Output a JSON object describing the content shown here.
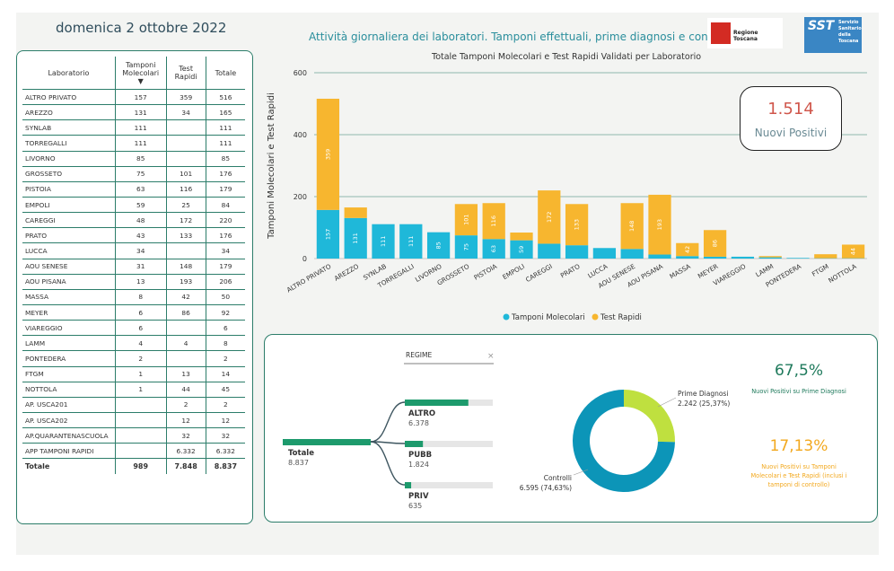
{
  "header": {
    "date": "domenica 2 ottobre 2022",
    "title": "Attività giornaliera dei laboratori. Tamponi effettuali, prime diagnosi e controlli"
  },
  "logos": {
    "regione": "Regione Toscana",
    "sst_big": "SST",
    "sst_small": "Servizio Sanitario della Toscana"
  },
  "table": {
    "headers": [
      "Laboratorio",
      "Tamponi Molecolari",
      "Test Rapidi",
      "Totale"
    ],
    "rows": [
      [
        "ALTRO PRIVATO",
        "157",
        "359",
        "516"
      ],
      [
        "AREZZO",
        "131",
        "34",
        "165"
      ],
      [
        "SYNLAB",
        "111",
        "",
        "111"
      ],
      [
        "TORREGALLI",
        "111",
        "",
        "111"
      ],
      [
        "LIVORNO",
        "85",
        "",
        "85"
      ],
      [
        "GROSSETO",
        "75",
        "101",
        "176"
      ],
      [
        "PISTOIA",
        "63",
        "116",
        "179"
      ],
      [
        "EMPOLI",
        "59",
        "25",
        "84"
      ],
      [
        "CAREGGI",
        "48",
        "172",
        "220"
      ],
      [
        "PRATO",
        "43",
        "133",
        "176"
      ],
      [
        "LUCCA",
        "34",
        "",
        "34"
      ],
      [
        "AOU SENESE",
        "31",
        "148",
        "179"
      ],
      [
        "AOU PISANA",
        "13",
        "193",
        "206"
      ],
      [
        "MASSA",
        "8",
        "42",
        "50"
      ],
      [
        "MEYER",
        "6",
        "86",
        "92"
      ],
      [
        "VIAREGGIO",
        "6",
        "",
        "6"
      ],
      [
        "LAMM",
        "4",
        "4",
        "8"
      ],
      [
        "PONTEDERA",
        "2",
        "",
        "2"
      ],
      [
        "FTGM",
        "1",
        "13",
        "14"
      ],
      [
        "NOTTOLA",
        "1",
        "44",
        "45"
      ],
      [
        "AP. USCA201",
        "",
        "2",
        "2"
      ],
      [
        "AP. USCA202",
        "",
        "12",
        "12"
      ],
      [
        "AP.QUARANTENASCUOLA",
        "",
        "32",
        "32"
      ],
      [
        "APP TAMPONI RAPIDI",
        "",
        "6.332",
        "6.332"
      ]
    ],
    "total": [
      "Totale",
      "989",
      "7.848",
      "8.837"
    ]
  },
  "chart_data": {
    "type": "bar",
    "title": "Totale Tamponi Molecolari e Test Rapidi Validati per Laboratorio",
    "ylabel": "Tamponi Molecolari e Test Rapidi",
    "ylim": [
      0,
      600
    ],
    "yticks": [
      "0",
      "200",
      "400",
      "600"
    ],
    "categories": [
      "ALTRO PRIVATO",
      "AREZZO",
      "SYNLAB",
      "TORREGALLI",
      "LIVORNO",
      "GROSSETO",
      "PISTOIA",
      "EMPOLI",
      "CAREGGI",
      "PRATO",
      "LUCCA",
      "AOU SENESE",
      "AOU PISANA",
      "MASSA",
      "MEYER",
      "VIAREGGIO",
      "LAMM",
      "PONTEDERA",
      "FTGM",
      "NOTTOLA"
    ],
    "series": [
      {
        "name": "Tamponi Molecolari",
        "color": "#1fb8d9",
        "values": [
          157,
          131,
          111,
          111,
          85,
          75,
          63,
          59,
          48,
          43,
          34,
          31,
          13,
          8,
          6,
          6,
          4,
          2,
          1,
          1
        ]
      },
      {
        "name": "Test Rapidi",
        "color": "#f7b62f",
        "values": [
          359,
          34,
          0,
          0,
          0,
          101,
          116,
          25,
          172,
          133,
          0,
          148,
          193,
          42,
          86,
          0,
          4,
          0,
          13,
          44
        ]
      }
    ],
    "legend_position": "bottom",
    "grid": true
  },
  "kpi": {
    "value": "1.514",
    "label": "Nuovi Positivi"
  },
  "tree": {
    "filter_label": "REGIME",
    "root": {
      "label": "Totale",
      "value": "8.837"
    },
    "children": [
      {
        "label": "ALTRO",
        "value": "6.378",
        "fraction": 0.722
      },
      {
        "label": "PUBB",
        "value": "1.824",
        "fraction": 0.206
      },
      {
        "label": "PRIV",
        "value": "635",
        "fraction": 0.072
      }
    ]
  },
  "donut": {
    "segments": [
      {
        "label": "Prime Diagnosi",
        "value": "2.242 (25,37%)",
        "fraction": 0.2537,
        "color": "#bfe03f"
      },
      {
        "label": "Controlli",
        "value": "6.595 (74,63%)",
        "fraction": 0.7463,
        "color": "#0c95b8"
      }
    ]
  },
  "stats": [
    {
      "value": "67,5%",
      "desc": "Nuovi Positivi su Prime Diagnosi",
      "color": "#1f7a5c"
    },
    {
      "value": "17,13%",
      "desc": "Nuovi Positivi su Tamponi Molecolari e Test Rapidi (inclusi i tamponi di controllo)",
      "color": "#f2a81e"
    }
  ]
}
